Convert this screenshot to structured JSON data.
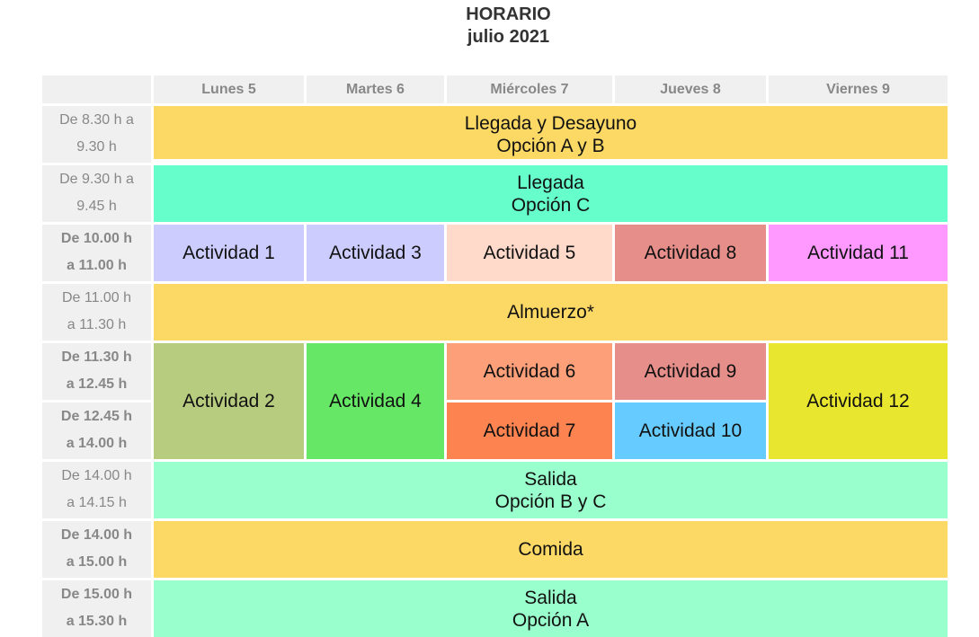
{
  "title": {
    "line1": "HORARIO",
    "line2": "julio 2021"
  },
  "days": [
    "Lunes 5",
    "Martes 6",
    "Miércoles 7",
    "Jueves 8",
    "Viernes 9"
  ],
  "times": [
    {
      "line1": "De 8.30 h a",
      "line2": "9.30 h",
      "bold": false
    },
    {
      "line1": "De 9.30 h a",
      "line2": "9.45 h",
      "bold": false
    },
    {
      "line1": "De 10.00 h",
      "line2": "a 11.00 h",
      "bold": true
    },
    {
      "line1": "De 11.00 h",
      "line2": "a 11.30 h",
      "bold": false
    },
    {
      "line1": "De 11.30 h",
      "line2": "a 12.45 h",
      "bold": true
    },
    {
      "line1": "De 12.45 h",
      "line2": "a 14.00 h",
      "bold": true
    },
    {
      "line1": "De 14.00 h",
      "line2": "a 14.15 h",
      "bold": false
    },
    {
      "line1": "De 14.00 h",
      "line2": "a 15.00 h",
      "bold": true
    },
    {
      "line1": "De 15.00 h",
      "line2": "a 15.30 h",
      "bold": true
    }
  ],
  "blocks": {
    "llegada_ab": {
      "line1": "Llegada y Desayuno",
      "line2": "Opción A y B",
      "color": "#fcd865"
    },
    "llegada_c": {
      "line1": "Llegada",
      "line2": "Opción C",
      "color": "#66ffcc"
    },
    "almuerzo": {
      "label": "Almuerzo*",
      "color": "#fcd865"
    },
    "salida_bc": {
      "line1": "Salida",
      "line2": "Opción B y C",
      "color": "#99ffcc"
    },
    "comida": {
      "label": "Comida",
      "color": "#fcd865"
    },
    "salida_a": {
      "line1": "Salida",
      "line2": "Opción A",
      "color": "#99ffcc"
    }
  },
  "activities": {
    "a1": {
      "label": "Actividad 1",
      "color": "#ccccff"
    },
    "a3": {
      "label": "Actividad 3",
      "color": "#ccccff"
    },
    "a5": {
      "label": "Actividad 5",
      "color": "#ffdacb"
    },
    "a8": {
      "label": "Actividad 8",
      "color": "#e68e8a"
    },
    "a11": {
      "label": "Actividad 11",
      "color": "#ff99ff"
    },
    "a2": {
      "label": "Actividad 2",
      "color": "#b8cc80"
    },
    "a4": {
      "label": "Actividad 4",
      "color": "#66e866"
    },
    "a6": {
      "label": "Actividad 6",
      "color": "#fda07a"
    },
    "a9": {
      "label": "Actividad 9",
      "color": "#e68e8a"
    },
    "a12": {
      "label": "Actividad 12",
      "color": "#e8e62e"
    },
    "a7": {
      "label": "Actividad 7",
      "color": "#fd8450"
    },
    "a10": {
      "label": "Actividad 10",
      "color": "#66ccff"
    }
  }
}
